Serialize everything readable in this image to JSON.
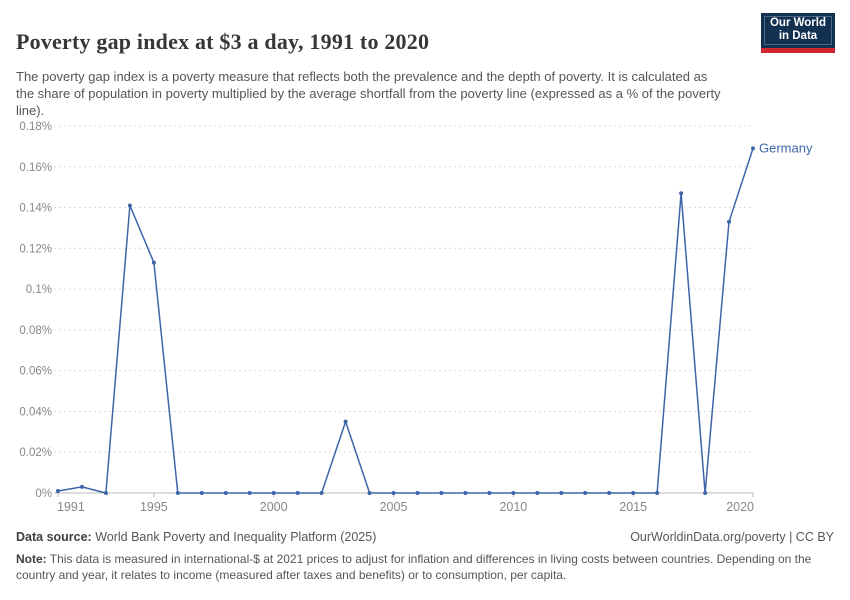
{
  "header": {
    "title": "Poverty gap index at $3 a day, 1991 to 2020",
    "subtitle": "The poverty gap index is a poverty measure that reflects both the prevalence and the depth of poverty. It is calculated as the share of population in poverty multiplied by the average shortfall from the poverty line (expressed as a % of the poverty line).",
    "logo": {
      "line1": "Our World",
      "line2": "in Data",
      "bg_color": "#12304f",
      "accent_color": "#d0262e"
    }
  },
  "chart_data": {
    "type": "line",
    "title": "Poverty gap index at $3 a day, 1991 to 2020",
    "xlabel": "",
    "ylabel": "",
    "xlim": [
      1991,
      2020
    ],
    "ylim": [
      0,
      0.18
    ],
    "grid": "dashed-horizontal",
    "legend_position": "end-of-line",
    "x_ticks": [
      1991,
      1995,
      2000,
      2005,
      2010,
      2015,
      2020
    ],
    "y_ticks": [
      0,
      0.02,
      0.04,
      0.06,
      0.08,
      0.1,
      0.12,
      0.14,
      0.16,
      0.18
    ],
    "y_tick_labels": [
      "0%",
      "0.02%",
      "0.04%",
      "0.06%",
      "0.08%",
      "0.1%",
      "0.12%",
      "0.14%",
      "0.16%",
      "0.18%"
    ],
    "x": [
      1991,
      1992,
      1993,
      1994,
      1995,
      1996,
      1997,
      1998,
      1999,
      2000,
      2001,
      2002,
      2003,
      2004,
      2005,
      2006,
      2007,
      2008,
      2009,
      2010,
      2011,
      2012,
      2013,
      2014,
      2015,
      2016,
      2017,
      2018,
      2019,
      2020
    ],
    "series": [
      {
        "name": "Germany",
        "color": "#3d65a8",
        "values": [
          0.001,
          0.003,
          0,
          0.141,
          0.113,
          0,
          0,
          0,
          0,
          0,
          0,
          0,
          0.035,
          0,
          0,
          0,
          0,
          0,
          0,
          0,
          0,
          0,
          0,
          0,
          0,
          0,
          0.147,
          0,
          0.133,
          0.169
        ]
      }
    ],
    "colors": {
      "grid": "#dcdcdc",
      "axis": "#b8b8b8",
      "tick_text": "#878787"
    }
  },
  "footer": {
    "source_label": "Data source:",
    "source_value": " World Bank Poverty and Inequality Platform (2025)",
    "license": "OurWorldinData.org/poverty | CC BY",
    "note_label": "Note:",
    "note_value": " This data is measured in international-$ at 2021 prices to adjust for inflation and differences in living costs between countries. Depending on the country and year, it relates to income (measured after taxes and benefits) or to consumption, per capita."
  }
}
